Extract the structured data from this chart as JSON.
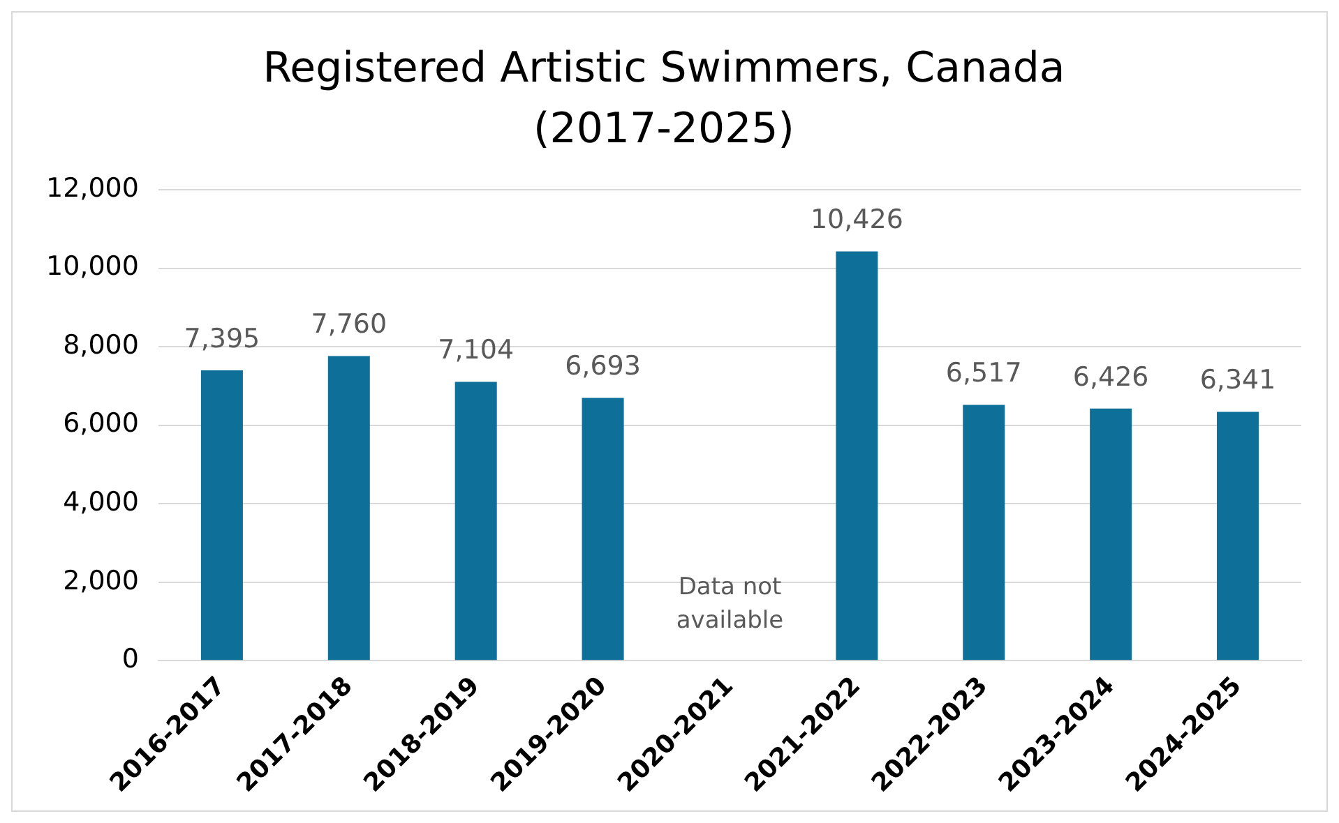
{
  "chart_data": {
    "type": "bar",
    "title": "Registered Artistic Swimmers, Canada (2017-2025)",
    "categories": [
      "2016-2017",
      "2017-2018",
      "2018-2019",
      "2019-2020",
      "2020-2021",
      "2021-2022",
      "2022-2023",
      "2023-2024",
      "2024-2025"
    ],
    "values": [
      7395,
      7760,
      7104,
      6693,
      null,
      10426,
      6517,
      6426,
      6341
    ],
    "value_labels": [
      "7,395",
      "7,760",
      "7,104",
      "6,693",
      null,
      "10,426",
      "6,517",
      "6,426",
      "6,341"
    ],
    "color": "#0e7099",
    "ylim": [
      0,
      12000
    ],
    "yticks": [
      0,
      {
        "value": 2000,
        "label": "2,000"
      },
      {
        "value": 4000,
        "label": "4,000"
      },
      {
        "value": 6000,
        "label": "6,000"
      },
      {
        "value": 8000,
        "label": "8,000"
      },
      {
        "value": 10000,
        "label": "10,000"
      },
      {
        "value": 12000,
        "label": "12,000"
      }
    ],
    "grid": "y",
    "legend": false,
    "annotations": [
      "Data not available"
    ]
  }
}
